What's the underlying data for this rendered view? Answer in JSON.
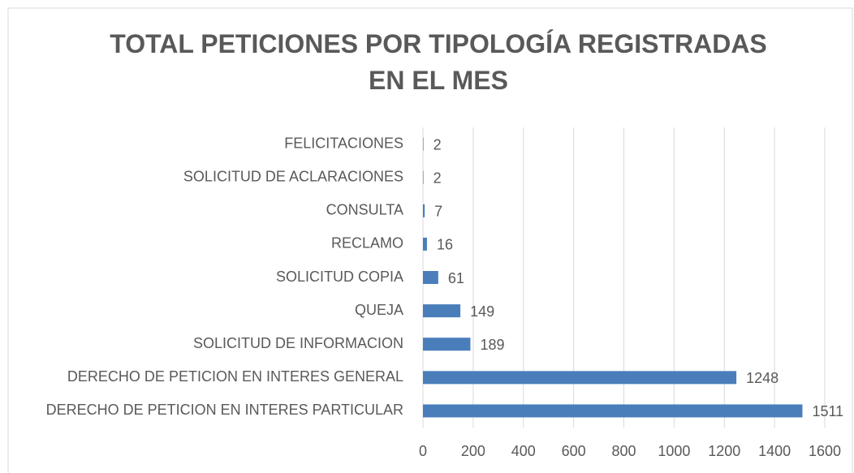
{
  "chart_data": {
    "type": "barh",
    "title": "TOTAL PETICIONES POR TIPOLOGÍA REGISTRADAS EN EL MES",
    "categories": [
      "FELICITACIONES",
      "SOLICITUD DE ACLARACIONES",
      "CONSULTA",
      "RECLAMO",
      "SOLICITUD COPIA",
      "QUEJA",
      "SOLICITUD DE INFORMACION",
      "DERECHO DE PETICION EN INTERES GENERAL",
      "DERECHO DE PETICION EN INTERES PARTICULAR"
    ],
    "values": [
      2,
      2,
      7,
      16,
      61,
      149,
      189,
      1248,
      1511
    ],
    "color": "#4a7ebb",
    "xlim": [
      0,
      1600
    ],
    "xticks": [
      0,
      200,
      400,
      600,
      800,
      1000,
      1200,
      1400,
      1600
    ],
    "grid": true
  }
}
